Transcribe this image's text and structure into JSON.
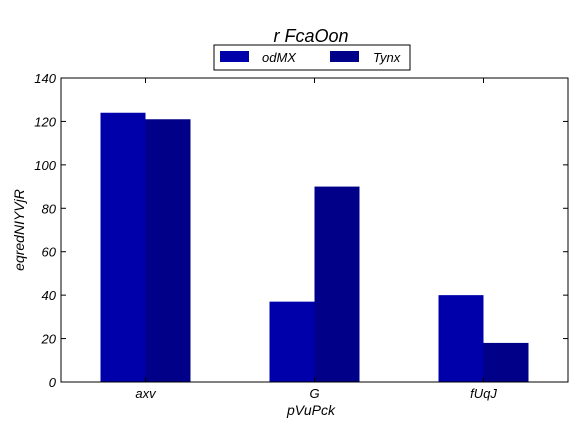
{
  "chart_data": {
    "type": "bar",
    "title": "r FcaOon",
    "xlabel": "pVuPck",
    "ylabel": "eqredNIYVjR",
    "categories": [
      "axv",
      "G",
      "fUqJ"
    ],
    "series": [
      {
        "name": "odMX",
        "values": [
          124,
          37,
          40
        ],
        "color": "#0000aa"
      },
      {
        "name": "Tynx",
        "values": [
          121,
          90,
          18
        ],
        "color": "#000088"
      }
    ],
    "ylim": [
      0,
      140
    ],
    "yticks": [
      0,
      20,
      40,
      60,
      80,
      100,
      120,
      140
    ],
    "grid": false,
    "legend_position": "top-center"
  }
}
